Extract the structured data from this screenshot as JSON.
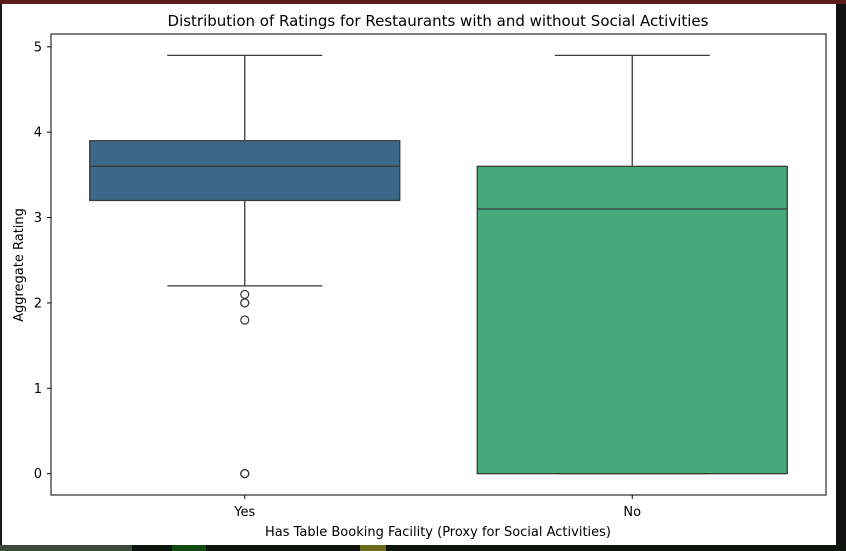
{
  "chart_data": {
    "type": "box",
    "title": "Distribution of Ratings for Restaurants with and without Social Activities",
    "xlabel": "Has Table Booking Facility (Proxy for Social Activities)",
    "ylabel": "Aggregate Rating",
    "ylim": [
      -0.25,
      5.15
    ],
    "yticks": [
      0,
      1,
      2,
      3,
      4,
      5
    ],
    "categories": [
      "Yes",
      "No"
    ],
    "boxes": [
      {
        "category": "Yes",
        "color": "#3b6888",
        "whisker_low": 2.2,
        "q1": 3.2,
        "median": 3.6,
        "q3": 3.9,
        "whisker_high": 4.9,
        "outliers": [
          2.1,
          2.0,
          2.0,
          1.8,
          0.0,
          0.0
        ]
      },
      {
        "category": "No",
        "color": "#46a979",
        "whisker_low": 0.0,
        "q1": 0.0,
        "median": 3.1,
        "q3": 3.6,
        "whisker_high": 4.9,
        "outliers": []
      }
    ],
    "grid": false,
    "legend": "none"
  }
}
